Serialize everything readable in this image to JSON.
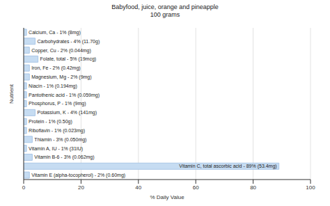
{
  "chart_data": {
    "type": "bar",
    "title": "Babyfood, juice, orange and pineapple",
    "subtitle": "100 grams",
    "orientation": "horizontal",
    "x_label": "% Daily Value",
    "y_label": "Nutrient",
    "categories": [
      "Calcium, Ca - 1% (8mg)",
      "Carbohydrates - 4% (11.70g)",
      "Copper, Cu - 2% (0.044mg)",
      "Folate, total - 5% (19mcg)",
      "Iron, Fe - 2% (0.42mg)",
      "Magnesium, Mg - 2% (9mg)",
      "Niacin - 1% (0.194mg)",
      "Pantothenic acid - 1% (0.059mg)",
      "Phosphorus, P - 1% (9mg)",
      "Potassium, K - 4% (141mg)",
      "Protein - 1% (0.50g)",
      "Riboflavin - 1% (0.023mg)",
      "Thiamin - 3% (0.050mg)",
      "Vitamin A, IU - 1% (31IU)",
      "Vitamin B-6 - 3% (0.062mg)",
      "Vitamin C, total ascorbic acid - 89% (53.4mg)",
      "Vitamin E (alpha-tocopherol) - 2% (0.60mg)"
    ],
    "values": [
      1,
      4,
      2,
      5,
      2,
      2,
      1,
      1,
      1,
      4,
      1,
      1,
      3,
      1,
      3,
      89,
      2
    ],
    "color": "#c6dcf2",
    "xlim": [
      0,
      100
    ],
    "xticks": [
      0,
      20,
      40,
      60,
      80,
      100
    ],
    "grid": true,
    "tick_labels": "x"
  }
}
